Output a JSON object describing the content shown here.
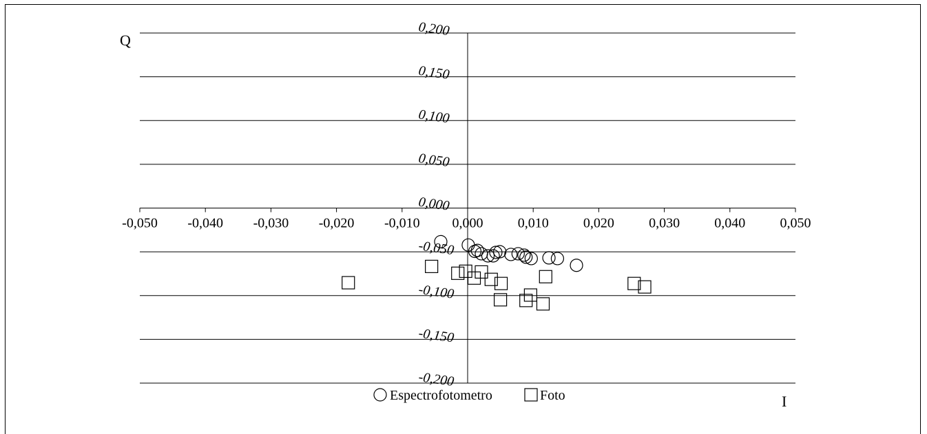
{
  "chart_data": {
    "type": "scatter",
    "xlabel": "I",
    "ylabel": "Q",
    "xlim": [
      -0.05,
      0.05
    ],
    "ylim": [
      -0.2,
      0.2
    ],
    "x_ticks": [
      "-0,050",
      "-0,040",
      "-0,030",
      "-0,020",
      "-0,010",
      "0,000",
      "0,010",
      "0,020",
      "0,030",
      "0,040",
      "0,050"
    ],
    "y_ticks": [
      "0,200",
      "0,150",
      "0,100",
      "0,050",
      "0,000",
      "-0,050",
      "-0,100",
      "-0,150",
      "-0,200"
    ],
    "x_tick_values": [
      -0.05,
      -0.04,
      -0.03,
      -0.02,
      -0.01,
      0.0,
      0.01,
      0.02,
      0.03,
      0.04,
      0.05
    ],
    "y_tick_values": [
      0.2,
      0.15,
      0.1,
      0.05,
      0.0,
      -0.05,
      -0.1,
      -0.15,
      -0.2
    ],
    "grid": "horizontal",
    "legend_position": "bottom",
    "series": [
      {
        "name": "Espectrofotometro",
        "marker": "circle",
        "points": [
          [
            -0.0041,
            -0.0384
          ],
          [
            0.0001,
            -0.0422
          ],
          [
            0.0011,
            -0.0495
          ],
          [
            0.0015,
            -0.0484
          ],
          [
            0.0021,
            -0.0522
          ],
          [
            0.0031,
            -0.0546
          ],
          [
            0.0039,
            -0.0546
          ],
          [
            0.0043,
            -0.0507
          ],
          [
            0.0049,
            -0.0499
          ],
          [
            0.0066,
            -0.053
          ],
          [
            0.0077,
            -0.0522
          ],
          [
            0.0086,
            -0.0538
          ],
          [
            0.0089,
            -0.0561
          ],
          [
            0.0097,
            -0.0577
          ],
          [
            0.0124,
            -0.0569
          ],
          [
            0.0137,
            -0.0577
          ],
          [
            0.0166,
            -0.0654
          ]
        ]
      },
      {
        "name": "Foto",
        "marker": "square",
        "points": [
          [
            -0.0182,
            -0.0853
          ],
          [
            -0.0055,
            -0.0667
          ],
          [
            -0.0015,
            -0.0745
          ],
          [
            -0.0003,
            -0.0722
          ],
          [
            0.001,
            -0.08
          ],
          [
            0.0021,
            -0.073
          ],
          [
            0.0036,
            -0.0815
          ],
          [
            0.0051,
            -0.0862
          ],
          [
            0.005,
            -0.1048
          ],
          [
            0.0089,
            -0.1056
          ],
          [
            0.0096,
            -0.0994
          ],
          [
            0.0115,
            -0.1095
          ],
          [
            0.0119,
            -0.0784
          ],
          [
            0.0254,
            -0.0862
          ],
          [
            0.027,
            -0.0901
          ]
        ]
      }
    ]
  }
}
